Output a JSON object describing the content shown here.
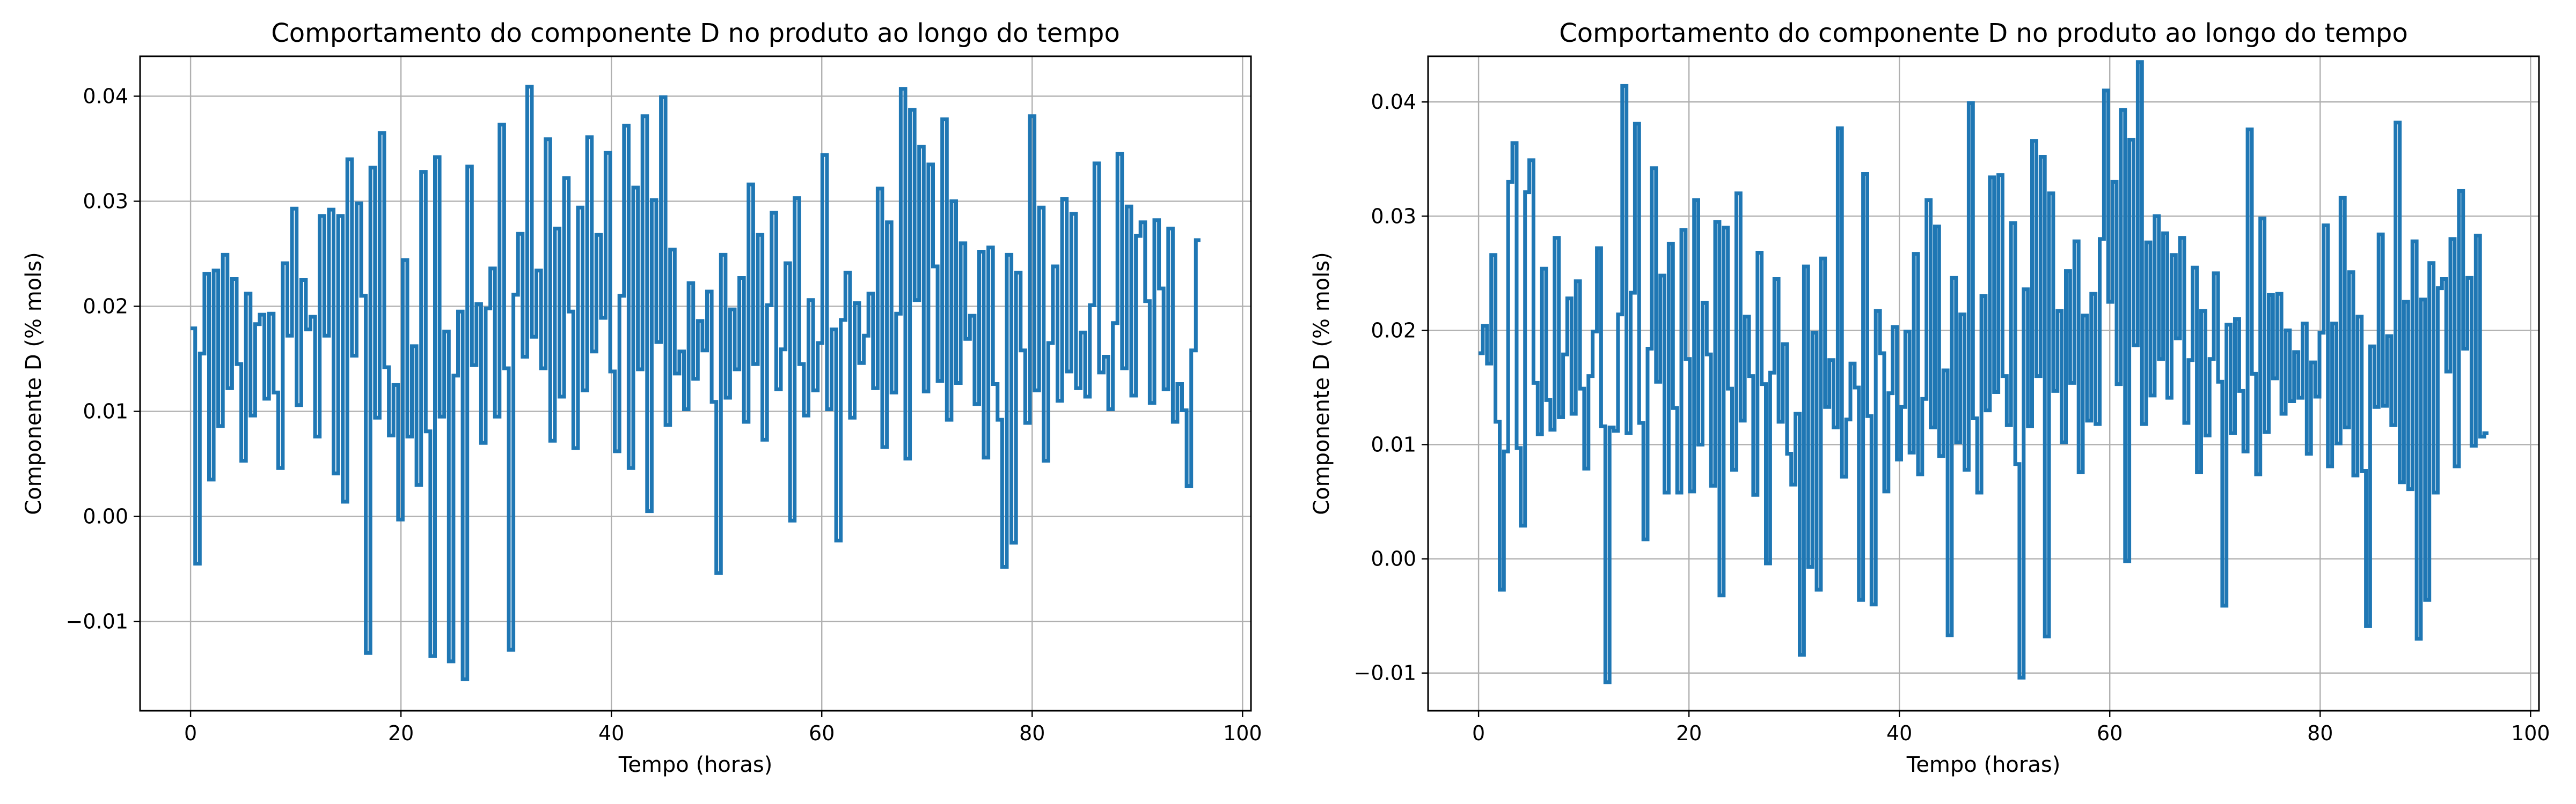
{
  "chart_data": [
    {
      "type": "line",
      "title": "Comportamento do componente D no produto ao longo do tempo",
      "xlabel": "Tempo (horas)",
      "ylabel": "Componente D (% mols)",
      "xlim": [
        -4.8,
        100.8
      ],
      "ylim": [
        -0.0185,
        0.0438
      ],
      "xticks": [
        0,
        20,
        40,
        60,
        80,
        100
      ],
      "xtick_labels": [
        "0",
        "20",
        "40",
        "60",
        "80",
        "100"
      ],
      "yticks": [
        -0.01,
        0.0,
        0.01,
        0.02,
        0.03,
        0.04
      ],
      "ytick_labels": [
        "−0.01",
        "0.00",
        "0.01",
        "0.02",
        "0.03",
        "0.04"
      ],
      "grid": true,
      "color": "#1f77b4",
      "step": true,
      "x_start": 0,
      "x_end": 96,
      "series": [
        {
          "values": [
            0.0179,
            -0.0045,
            0.0155,
            0.0231,
            0.0035,
            0.0234,
            0.0086,
            0.0249,
            0.0122,
            0.0226,
            0.0145,
            0.0053,
            0.0212,
            0.0096,
            0.0183,
            0.0192,
            0.0112,
            0.0193,
            0.0118,
            0.0046,
            0.0241,
            0.0172,
            0.0293,
            0.0106,
            0.0225,
            0.0178,
            0.019,
            0.0076,
            0.0286,
            0.0172,
            0.0292,
            0.0041,
            0.0286,
            0.0014,
            0.034,
            0.0153,
            0.0298,
            0.021,
            -0.013,
            0.0332,
            0.0094,
            0.0365,
            0.0142,
            0.0077,
            0.0125,
            -0.0003,
            0.0244,
            0.0076,
            0.0162,
            0.003,
            0.0328,
            0.0081,
            -0.0133,
            0.0342,
            0.0095,
            0.0176,
            -0.0138,
            0.0134,
            0.0195,
            -0.0155,
            0.0333,
            0.0144,
            0.0202,
            0.007,
            0.0198,
            0.0236,
            0.0095,
            0.0373,
            0.0141,
            -0.0127,
            0.0211,
            0.0269,
            0.0152,
            0.0409,
            0.0171,
            0.0234,
            0.0141,
            0.0359,
            0.0072,
            0.0274,
            0.0114,
            0.0322,
            0.0195,
            0.0065,
            0.0294,
            0.012,
            0.0361,
            0.0157,
            0.0268,
            0.0189,
            0.0346,
            0.0138,
            0.0062,
            0.021,
            0.0372,
            0.0046,
            0.0313,
            0.014,
            0.0381,
            0.0005,
            0.0301,
            0.0166,
            0.0399,
            0.0087,
            0.0254,
            0.0136,
            0.0157,
            0.0102,
            0.0222,
            0.0131,
            0.0186,
            0.0158,
            0.0214,
            0.0109,
            -0.0054,
            0.0249,
            0.0113,
            0.0197,
            0.014,
            0.0227,
            0.009,
            0.0316,
            0.0145,
            0.0268,
            0.0073,
            0.0201,
            0.0289,
            0.0121,
            0.0159,
            0.0241,
            -0.0004,
            0.0303,
            0.0145,
            0.0096,
            0.0206,
            0.012,
            0.0165,
            0.0344,
            0.0102,
            0.0178,
            -0.0023,
            0.0187,
            0.0232,
            0.0094,
            0.0203,
            0.0146,
            0.0172,
            0.0212,
            0.0122,
            0.0312,
            0.0066,
            0.028,
            0.0118,
            0.0193,
            0.0407,
            0.0055,
            0.0387,
            0.0206,
            0.0352,
            0.0119,
            0.0335,
            0.0238,
            0.0129,
            0.0378,
            0.0092,
            0.03,
            0.0127,
            0.026,
            0.0169,
            0.0191,
            0.0107,
            0.0252,
            0.0056,
            0.0256,
            0.0126,
            0.0092,
            -0.0048,
            0.0249,
            -0.0025,
            0.0232,
            0.0158,
            0.0089,
            0.0381,
            0.012,
            0.0294,
            0.0053,
            0.0165,
            0.0238,
            0.011,
            0.0302,
            0.0138,
            0.0288,
            0.0122,
            0.0175,
            0.0114,
            0.0201,
            0.0336,
            0.0137,
            0.0152,
            0.0102,
            0.0184,
            0.0345,
            0.0141,
            0.0295,
            0.0115,
            0.0267,
            0.028,
            0.0205,
            0.0108,
            0.0282,
            0.0217,
            0.0121,
            0.0274,
            0.009,
            0.0126,
            0.0101,
            0.0029,
            0.0158,
            0.0263
          ]
        }
      ]
    },
    {
      "type": "line",
      "title": "Comportamento do componente D no produto ao longo do tempo",
      "xlabel": "Tempo (horas)",
      "ylabel": "Componente D (% mols)",
      "xlim": [
        -4.8,
        100.8
      ],
      "ylim": [
        -0.0133,
        0.044
      ],
      "xticks": [
        0,
        20,
        40,
        60,
        80,
        100
      ],
      "xtick_labels": [
        "0",
        "20",
        "40",
        "60",
        "80",
        "100"
      ],
      "yticks": [
        -0.01,
        0.0,
        0.01,
        0.02,
        0.03,
        0.04
      ],
      "ytick_labels": [
        "−0.01",
        "0.00",
        "0.01",
        "0.02",
        "0.03",
        "0.04"
      ],
      "grid": true,
      "color": "#1f77b4",
      "step": true,
      "x_start": 0,
      "x_end": 96,
      "series": [
        {
          "values": [
            0.018,
            0.0204,
            0.0171,
            0.0266,
            0.012,
            -0.0027,
            0.0094,
            0.033,
            0.0364,
            0.0097,
            0.0029,
            0.0321,
            0.0349,
            0.0154,
            0.0109,
            0.0254,
            0.0139,
            0.0113,
            0.0281,
            0.0124,
            0.0179,
            0.0228,
            0.0127,
            0.0243,
            0.0149,
            0.0079,
            0.016,
            0.0199,
            0.0272,
            0.0116,
            -0.0108,
            0.0115,
            0.0112,
            0.0214,
            0.0414,
            0.011,
            0.0233,
            0.0381,
            0.0119,
            0.0017,
            0.0184,
            0.0342,
            0.0155,
            0.0248,
            0.0058,
            0.0276,
            0.0132,
            0.0058,
            0.0288,
            0.0175,
            0.0059,
            0.0314,
            0.01,
            0.0224,
            0.0179,
            0.0064,
            0.0295,
            -0.0032,
            0.029,
            0.0149,
            0.0078,
            0.032,
            0.0121,
            0.0212,
            0.016,
            0.0056,
            0.0268,
            0.0153,
            -0.0004,
            0.0163,
            0.0245,
            0.012,
            0.0188,
            0.0092,
            0.0065,
            0.0127,
            -0.0084,
            0.0256,
            -0.0007,
            0.0198,
            -0.0027,
            0.0263,
            0.0133,
            0.0174,
            0.0115,
            0.0377,
            0.0072,
            0.0122,
            0.0171,
            0.015,
            -0.0036,
            0.0337,
            0.0125,
            -0.004,
            0.0217,
            0.018,
            0.0059,
            0.0145,
            0.0203,
            0.0087,
            0.0133,
            0.0199,
            0.0093,
            0.0267,
            0.0074,
            0.014,
            0.0314,
            0.0115,
            0.0291,
            0.009,
            0.0165,
            -0.0067,
            0.0246,
            0.0102,
            0.0214,
            0.0078,
            0.0399,
            0.0123,
            0.0058,
            0.023,
            0.013,
            0.0334,
            0.0146,
            0.0336,
            0.016,
            0.0117,
            0.0294,
            0.0083,
            -0.0104,
            0.0236,
            0.0116,
            0.0366,
            0.016,
            0.0352,
            -0.0068,
            0.032,
            0.0147,
            0.0217,
            0.0102,
            0.0252,
            0.0154,
            0.0278,
            0.0076,
            0.0213,
            0.0121,
            0.0232,
            0.0118,
            0.028,
            0.041,
            0.0225,
            0.033,
            0.0153,
            0.0393,
            -0.0002,
            0.0367,
            0.0187,
            0.0435,
            0.0118,
            0.0277,
            0.0143,
            0.03,
            0.0175,
            0.0285,
            0.0141,
            0.0266,
            0.0193,
            0.0281,
            0.0119,
            0.0174,
            0.0255,
            0.0076,
            0.0217,
            0.0108,
            0.0175,
            0.025,
            0.0155,
            -0.0041,
            0.0205,
            0.011,
            0.021,
            0.0147,
            0.0094,
            0.0376,
            0.0162,
            0.0074,
            0.0298,
            0.0111,
            0.0231,
            0.0158,
            0.0232,
            0.0127,
            0.02,
            0.0138,
            0.0181,
            0.0141,
            0.0206,
            0.0092,
            0.0172,
            0.0142,
            0.0198,
            0.0292,
            0.0081,
            0.0206,
            0.0101,
            0.0316,
            0.0115,
            0.0251,
            0.0073,
            0.0212,
            0.0077,
            -0.0059,
            0.0186,
            0.0133,
            0.0284,
            0.0134,
            0.0195,
            0.0117,
            0.0382,
            0.0067,
            0.0225,
            0.0061,
            0.0278,
            -0.007,
            0.0227,
            -0.0036,
            0.0259,
            0.0058,
            0.0237,
            0.0245,
            0.0164,
            0.028,
            0.0081,
            0.0322,
            0.0184,
            0.0246,
            0.0099,
            0.0283,
            0.0107,
            0.011
          ]
        }
      ]
    }
  ]
}
